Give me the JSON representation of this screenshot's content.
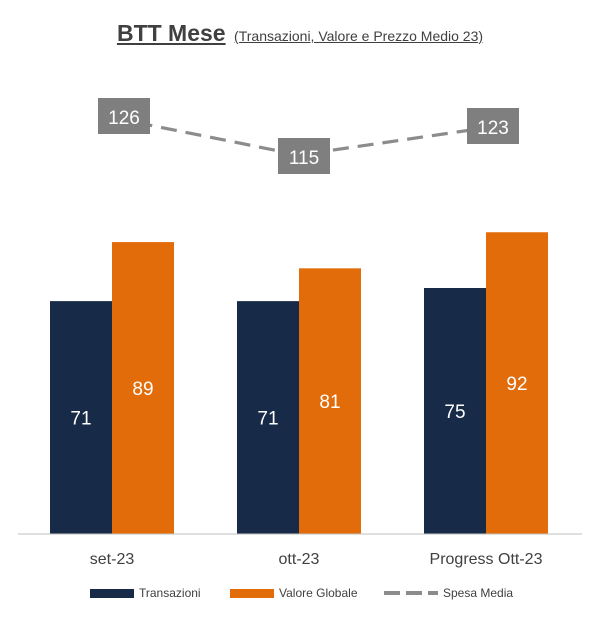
{
  "title": "BTT Mese",
  "subtitle": "(Transazioni, Valore e Prezzo Medio 23)",
  "colors": {
    "transazioni": "#172b48",
    "valore": "#e36c0a",
    "spesa": "#8c8c8c",
    "label_box": "#7f7f7f",
    "axis": "#bfbfbf"
  },
  "chart_data": {
    "type": "bar",
    "categories": [
      "set-23",
      "ott-23",
      "Progress Ott-23"
    ],
    "series": [
      {
        "name": "Transazioni",
        "type": "bar",
        "values": [
          71,
          71,
          75
        ]
      },
      {
        "name": "Valore Globale",
        "type": "bar",
        "values": [
          89,
          81,
          92
        ]
      },
      {
        "name": "Spesa Media",
        "type": "line",
        "style": "dashed",
        "values": [
          126,
          115,
          123
        ]
      }
    ],
    "title": "BTT Mese",
    "subtitle": "(Transazioni, Valore e Prezzo Medio 23)",
    "legend_position": "bottom",
    "grid": false
  },
  "legend": {
    "transazioni": "Transazioni",
    "valore": "Valore Globale",
    "spesa": "Spesa Media"
  }
}
